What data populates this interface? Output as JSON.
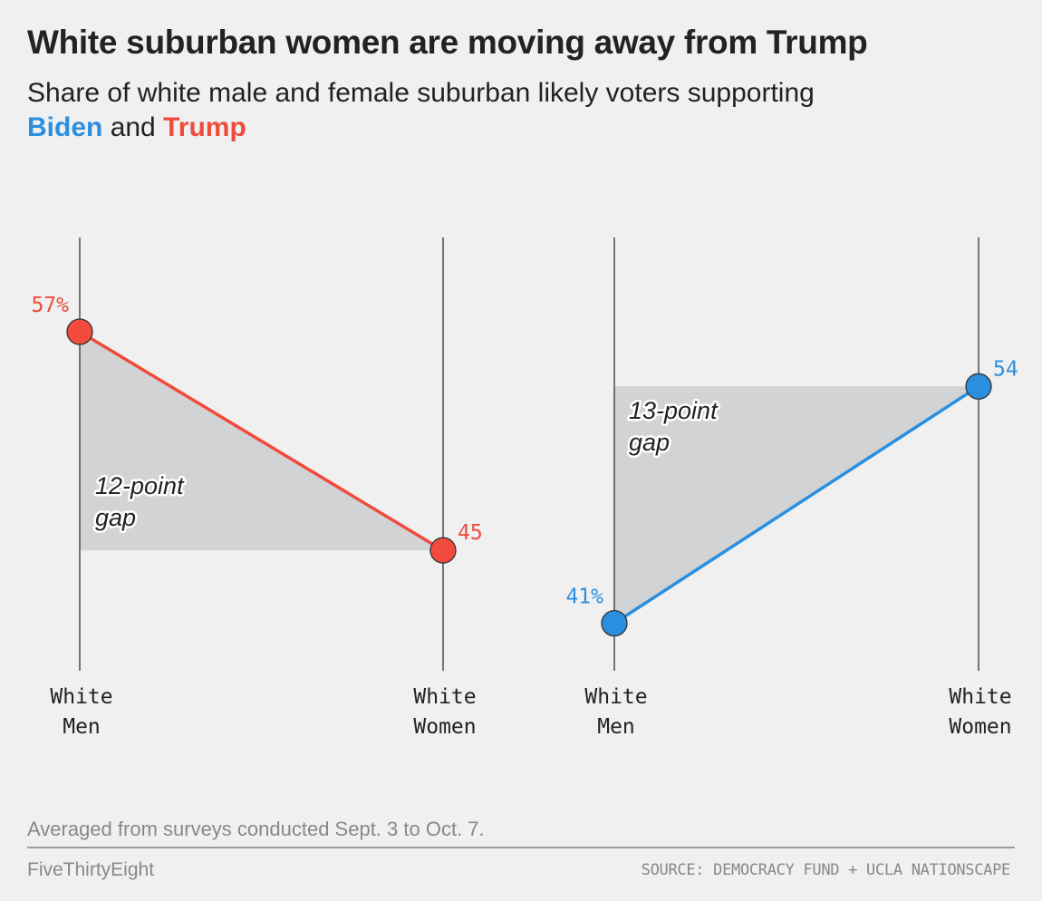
{
  "header": {
    "title": "White suburban women are moving away from Trump",
    "subtitle_text": "Share of white male and female suburban likely voters supporting",
    "subtitle_biden": "Biden",
    "subtitle_and": "and",
    "subtitle_trump": "Trump"
  },
  "colors": {
    "biden": "#2b8fe0",
    "trump": "#f04b3c",
    "gap_fill": "#d2d3d5",
    "axis_line": "#333333",
    "background": "#f0f0f0"
  },
  "chart_data": [
    {
      "type": "line",
      "categories": [
        "White Men",
        "White Women"
      ],
      "category_lines": [
        [
          "White",
          "Men"
        ],
        [
          "White",
          "Women"
        ]
      ],
      "series": [
        {
          "name": "Trump",
          "values": [
            57,
            45
          ]
        }
      ],
      "value_labels": [
        "57%",
        "45"
      ],
      "annotation": [
        "12-point",
        "gap"
      ],
      "ylim": [
        36,
        62
      ]
    },
    {
      "type": "line",
      "categories": [
        "White Men",
        "White Women"
      ],
      "category_lines": [
        [
          "White",
          "Men"
        ],
        [
          "White",
          "Women"
        ]
      ],
      "series": [
        {
          "name": "Biden",
          "values": [
            41,
            54
          ]
        }
      ],
      "value_labels": [
        "41%",
        "54"
      ],
      "annotation": [
        "13-point",
        "gap"
      ],
      "ylim": [
        36,
        62
      ]
    }
  ],
  "footer": {
    "note": "Averaged from surveys conducted Sept. 3 to Oct. 7.",
    "brand": "FiveThirtyEight",
    "source": "SOURCE: DEMOCRACY FUND + UCLA NATIONSCAPE"
  }
}
